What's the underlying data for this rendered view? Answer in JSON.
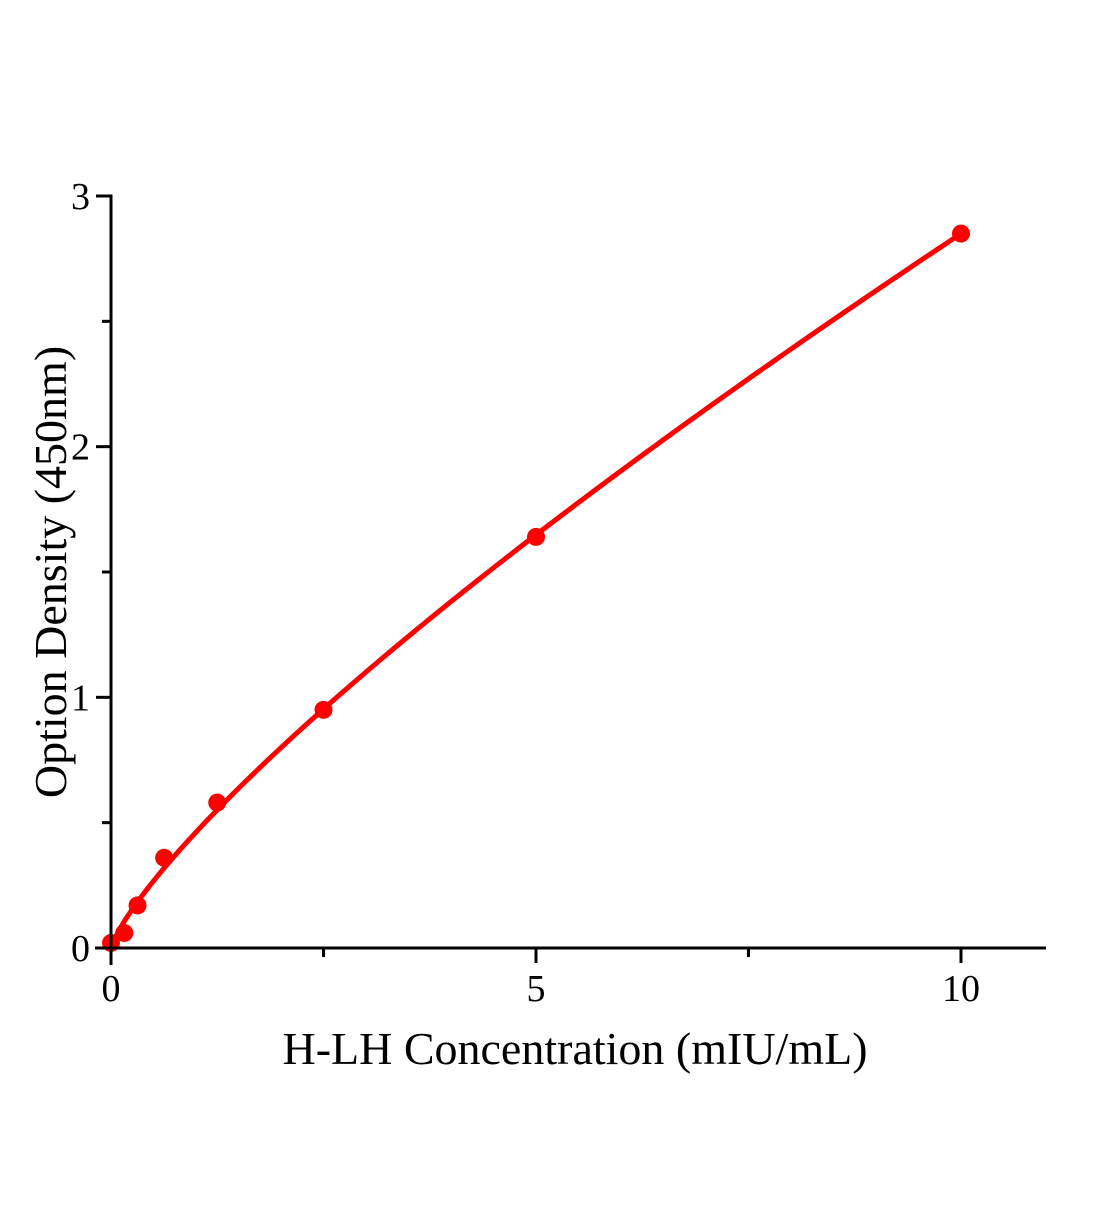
{
  "figure": {
    "background": "#ffffff",
    "description": "ELISA standard curve plot"
  },
  "chart_data": {
    "type": "scatter",
    "title": "",
    "xlabel": "H-LH Concentration（mIU/mL）",
    "ylabel": "Option Density（450nm）",
    "x": [
      0,
      0.156,
      0.312,
      0.625,
      1.25,
      2.5,
      5,
      10
    ],
    "y": [
      0.02,
      0.06,
      0.17,
      0.36,
      0.58,
      0.95,
      1.64,
      2.85
    ],
    "xlim": [
      0,
      11
    ],
    "ylim": [
      0,
      3
    ],
    "x_major_ticks": [
      0,
      5,
      10
    ],
    "x_tick_labels": [
      "0",
      "5",
      "10"
    ],
    "x_minor_ticks": [
      2.5,
      7.5
    ],
    "y_major_ticks": [
      0,
      1,
      2,
      3
    ],
    "y_tick_labels": [
      "0",
      "1",
      "2",
      "3"
    ],
    "y_minor_ticks": [
      0.5,
      1.5,
      2.5
    ],
    "grid": false,
    "legend_position": "none",
    "marker_color": "#ff0000",
    "line_color": "#ff0000",
    "axis_color": "#000000",
    "fit_curve": {
      "type": "power",
      "a": 0.4622,
      "b": 0.79,
      "x_start": 0,
      "x_end": 10
    }
  }
}
